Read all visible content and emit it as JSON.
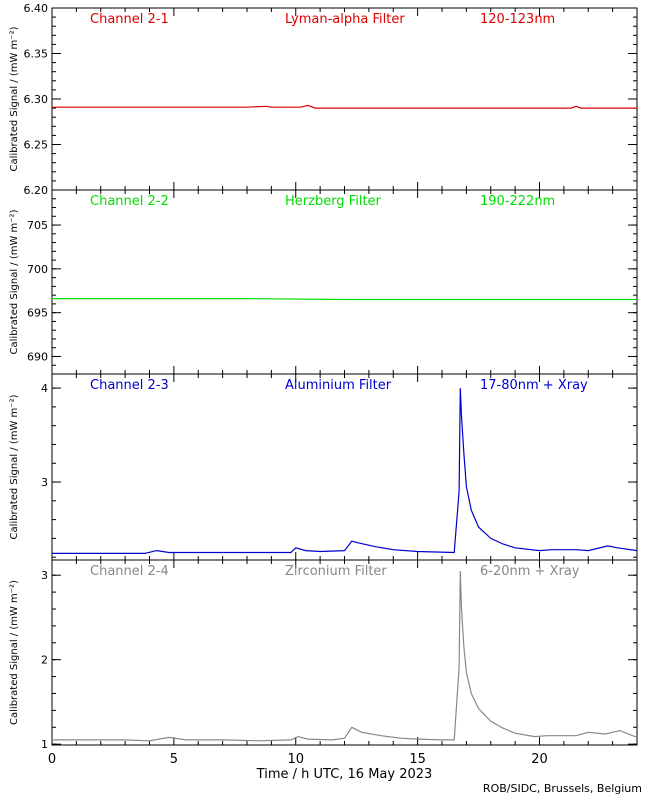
{
  "chart_data": {
    "type": "line",
    "xlabel": "Time / h UTC, 16 May 2023",
    "xlim": [
      0,
      24
    ],
    "x_ticks": [
      "0",
      "5",
      "10",
      "15",
      "20"
    ],
    "x_tick_values": [
      0,
      5,
      10,
      15,
      20
    ],
    "credit": "ROB/SIDC, Brussels, Belgium",
    "panels": [
      {
        "channel": "Channel 2-1",
        "filter": "Lyman-alpha Filter",
        "band": "120-123nm",
        "ylabel": "Calibrated Signal / (mW m⁻²)",
        "color": "#dd0000",
        "ylim": [
          6.2,
          6.4
        ],
        "yscale": "linear",
        "y_ticks": [
          "6.20",
          "6.25",
          "6.30",
          "6.35",
          "6.40"
        ],
        "y_tick_values": [
          6.2,
          6.25,
          6.3,
          6.35,
          6.4
        ],
        "x": [
          0,
          2,
          4,
          6,
          8,
          8.8,
          9,
          10.2,
          10.5,
          10.8,
          12,
          14,
          16,
          18,
          19.5,
          20,
          21.3,
          21.5,
          21.7,
          24
        ],
        "y": [
          6.291,
          6.291,
          6.291,
          6.291,
          6.291,
          6.292,
          6.291,
          6.291,
          6.293,
          6.29,
          6.29,
          6.29,
          6.29,
          6.29,
          6.29,
          6.29,
          6.29,
          6.292,
          6.29,
          6.29
        ]
      },
      {
        "channel": "Channel 2-2",
        "filter": "Herzberg Filter",
        "band": "190-222nm",
        "ylabel": "Calibrated Signal / (mW m⁻²)",
        "color": "#00dd00",
        "ylim": [
          688,
          709
        ],
        "yscale": "linear",
        "y_ticks": [
          "690",
          "695",
          "700",
          "705"
        ],
        "y_tick_values": [
          690,
          695,
          700,
          705
        ],
        "x": [
          0,
          4,
          8,
          12,
          16,
          20,
          24
        ],
        "y": [
          696.6,
          696.6,
          696.6,
          696.5,
          696.5,
          696.5,
          696.5
        ]
      },
      {
        "channel": "Channel 2-3",
        "filter": "Aluminium Filter",
        "band": "17-80nm + Xray",
        "ylabel": "Calibrated Signal / (mW m⁻²)",
        "color": "#0000cc",
        "ylim": [
          2.17,
          4.15
        ],
        "yscale": "linear",
        "y_ticks": [
          "3",
          "4"
        ],
        "y_tick_values": [
          3,
          4
        ],
        "x": [
          0,
          2,
          3.8,
          4.3,
          4.8,
          6,
          8,
          9.8,
          10.0,
          10.4,
          11,
          12.0,
          12.3,
          12.6,
          13.3,
          14,
          15,
          16.5,
          16.7,
          16.75,
          16.8,
          16.9,
          17.0,
          17.2,
          17.5,
          18,
          18.5,
          19,
          20,
          20.5,
          21.5,
          22,
          22.8,
          23.2,
          24
        ],
        "y": [
          2.24,
          2.24,
          2.24,
          2.27,
          2.25,
          2.25,
          2.25,
          2.25,
          2.3,
          2.27,
          2.26,
          2.27,
          2.37,
          2.35,
          2.31,
          2.28,
          2.26,
          2.25,
          2.9,
          4.0,
          3.7,
          3.3,
          2.95,
          2.7,
          2.52,
          2.4,
          2.34,
          2.3,
          2.27,
          2.28,
          2.28,
          2.27,
          2.32,
          2.3,
          2.27
        ]
      },
      {
        "channel": "Channel 2-4",
        "filter": "Zirconium Filter",
        "band": "6-20nm + Xray",
        "ylabel": "Calibrated Signal / (mW m⁻²)",
        "color": "#888888",
        "ylim": [
          0.99,
          3.18
        ],
        "yscale": "linear",
        "y_ticks": [
          "1",
          "2",
          "3"
        ],
        "y_tick_values": [
          1,
          2,
          3
        ],
        "x": [
          0,
          1,
          2,
          3,
          4,
          4.8,
          5.5,
          7,
          8.5,
          9.8,
          10.1,
          10.5,
          11.5,
          12.0,
          12.3,
          12.7,
          13.5,
          14.3,
          15,
          16,
          16.5,
          16.7,
          16.75,
          16.8,
          16.9,
          17.0,
          17.2,
          17.5,
          18,
          18.5,
          19,
          19.8,
          20.3,
          21,
          21.5,
          22,
          22.7,
          23.3,
          24
        ],
        "y": [
          1.05,
          1.05,
          1.05,
          1.05,
          1.04,
          1.08,
          1.05,
          1.05,
          1.04,
          1.05,
          1.09,
          1.06,
          1.05,
          1.07,
          1.2,
          1.14,
          1.1,
          1.07,
          1.06,
          1.05,
          1.05,
          1.9,
          3.05,
          2.6,
          2.15,
          1.85,
          1.6,
          1.42,
          1.27,
          1.19,
          1.13,
          1.09,
          1.1,
          1.1,
          1.1,
          1.14,
          1.12,
          1.16,
          1.08
        ]
      }
    ]
  }
}
